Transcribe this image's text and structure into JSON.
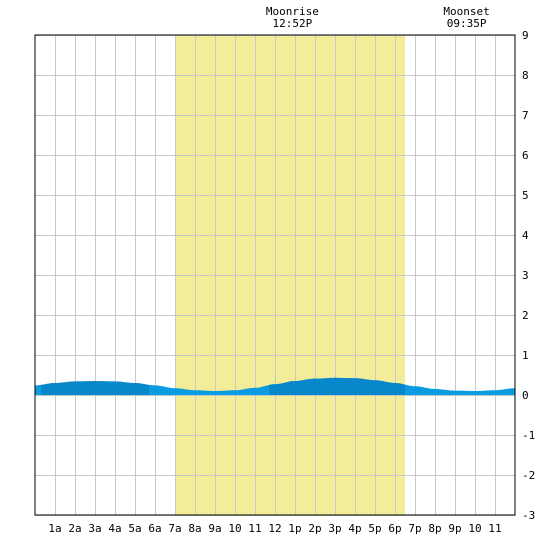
{
  "chart_data": {
    "type": "area",
    "title": "",
    "xlabel": "",
    "ylabel": "",
    "x_range": [
      0,
      24
    ],
    "ylim": [
      -3,
      9
    ],
    "grid": true,
    "y_ticks": [
      -3,
      -2,
      -1,
      0,
      1,
      2,
      3,
      4,
      5,
      6,
      7,
      8,
      9
    ],
    "x_ticks": [
      {
        "x": 1,
        "label": "1a"
      },
      {
        "x": 2,
        "label": "2a"
      },
      {
        "x": 3,
        "label": "3a"
      },
      {
        "x": 4,
        "label": "4a"
      },
      {
        "x": 5,
        "label": "5a"
      },
      {
        "x": 6,
        "label": "6a"
      },
      {
        "x": 7,
        "label": "7a"
      },
      {
        "x": 8,
        "label": "8a"
      },
      {
        "x": 9,
        "label": "9a"
      },
      {
        "x": 10,
        "label": "10"
      },
      {
        "x": 11,
        "label": "11"
      },
      {
        "x": 12,
        "label": "12"
      },
      {
        "x": 13,
        "label": "1p"
      },
      {
        "x": 14,
        "label": "2p"
      },
      {
        "x": 15,
        "label": "3p"
      },
      {
        "x": 16,
        "label": "4p"
      },
      {
        "x": 17,
        "label": "5p"
      },
      {
        "x": 18,
        "label": "6p"
      },
      {
        "x": 19,
        "label": "7p"
      },
      {
        "x": 20,
        "label": "8p"
      },
      {
        "x": 21,
        "label": "9p"
      },
      {
        "x": 22,
        "label": "10"
      },
      {
        "x": 23,
        "label": "11"
      }
    ],
    "daylight": {
      "start": 7,
      "end": 18.5
    },
    "colors": {
      "daylight": "#f3ec98",
      "grid": "#c8c8c8",
      "tide_light": "#0a9be0",
      "tide_dark": "#0876b8"
    },
    "annotations": [
      {
        "x": 12.87,
        "lines": [
          "Moonrise",
          "12:52P"
        ]
      },
      {
        "x": 21.58,
        "lines": [
          "Moonset",
          "09:35P"
        ]
      }
    ],
    "series": [
      {
        "x": [
          0,
          1,
          2,
          3,
          4,
          5,
          6,
          7,
          8,
          9,
          10,
          11,
          12,
          13,
          14,
          15,
          16,
          17,
          18,
          19,
          20,
          21,
          22,
          23,
          24
        ],
        "y": [
          0.24,
          0.3,
          0.34,
          0.35,
          0.34,
          0.3,
          0.24,
          0.17,
          0.12,
          0.1,
          0.12,
          0.18,
          0.27,
          0.35,
          0.41,
          0.43,
          0.42,
          0.37,
          0.3,
          0.22,
          0.15,
          0.11,
          0.1,
          0.12,
          0.17
        ]
      }
    ]
  }
}
